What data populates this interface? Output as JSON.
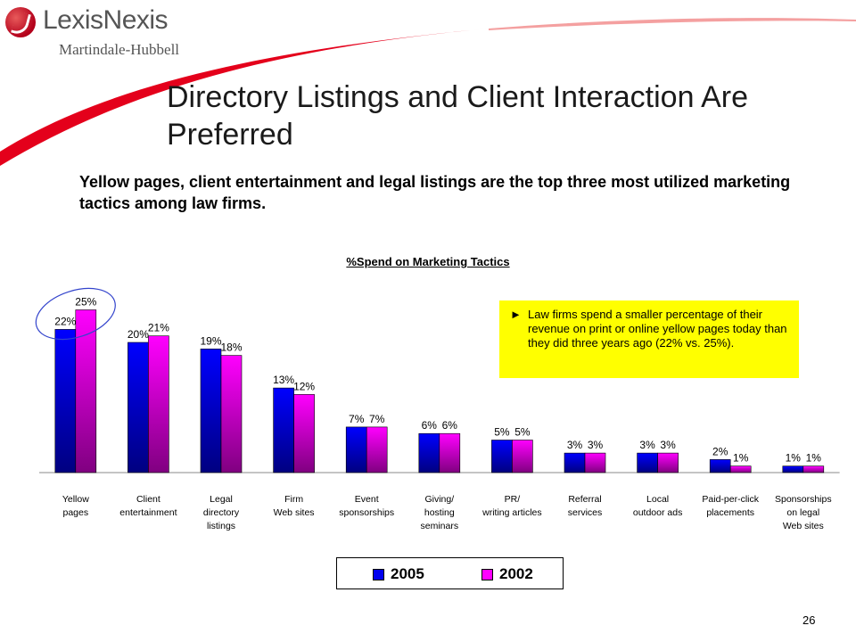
{
  "logo": {
    "name": "LexisNexis",
    "sub": "Martindale-Hubbell"
  },
  "title": "Directory Listings and Client Interaction Are Preferred",
  "subtitle": "Yellow pages, client entertainment and legal listings are the top three most utilized marketing tactics among law firms.",
  "callout": {
    "arrow": "►",
    "text": "Law firms spend a smaller percentage of their revenue on print or online yellow pages today than they did three years ago (22% vs. 25%)."
  },
  "page_number": "26",
  "colors": {
    "series_2005": "#0000ee",
    "series_2002": "#ff00ff",
    "callout_bg": "#ffff00",
    "highlight_circle": "#3344cc",
    "swoosh": "#e4001b"
  },
  "chart_data": {
    "type": "bar",
    "title": "%Spend on Marketing Tactics",
    "categories": [
      [
        "Yellow",
        "pages"
      ],
      [
        "Client",
        "entertainment"
      ],
      [
        "Legal",
        "directory",
        "listings"
      ],
      [
        "Firm",
        "Web sites"
      ],
      [
        "Event",
        "sponsorships"
      ],
      [
        "Giving/",
        "hosting",
        "seminars"
      ],
      [
        "PR/",
        "writing articles"
      ],
      [
        "Referral",
        "services"
      ],
      [
        "Local",
        "outdoor ads"
      ],
      [
        "Paid-per-click",
        "placements"
      ],
      [
        "Sponsorships",
        "on legal",
        "Web sites"
      ]
    ],
    "series": [
      {
        "name": "2005",
        "values": [
          22,
          20,
          19,
          13,
          7,
          6,
          5,
          3,
          3,
          2,
          1
        ]
      },
      {
        "name": "2002",
        "values": [
          25,
          21,
          18,
          12,
          7,
          6,
          5,
          3,
          3,
          1,
          1
        ]
      }
    ],
    "value_suffix": "%",
    "legend": "bottom",
    "highlight_category": 0
  }
}
